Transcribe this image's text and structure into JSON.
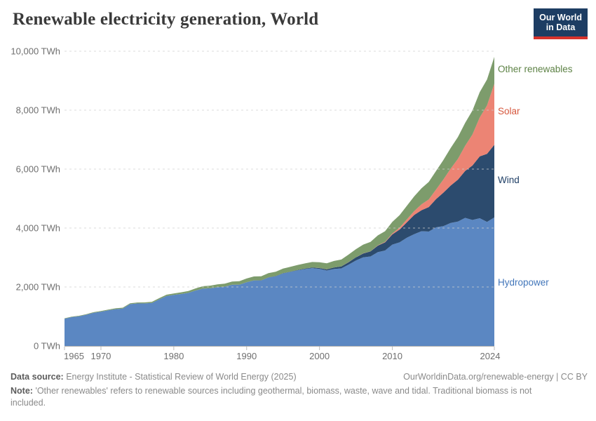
{
  "header": {
    "title": "Renewable electricity generation, World",
    "logo_line1": "Our World",
    "logo_line2": "in Data",
    "logo_bg": "#1d3d63",
    "logo_accent": "#d6332c"
  },
  "footer": {
    "source_label": "Data source:",
    "source_text": "Energy Institute - Statistical Review of World Energy (2025)",
    "credit": "OurWorldinData.org/renewable-energy | CC BY",
    "note_label": "Note:",
    "note_text": "'Other renewables' refers to renewable sources including geothermal, biomass, waste, wave and tidal. Traditional biomass is not included."
  },
  "chart_data": {
    "type": "area",
    "stacked": true,
    "title": "Renewable electricity generation, World",
    "unit": "TWh",
    "xlabel": "",
    "ylabel": "",
    "ylim": [
      0,
      10000
    ],
    "xlim": [
      1965,
      2024
    ],
    "grid": "dashed-horizontal",
    "legend_position": "right-edge-labels",
    "x": [
      1965,
      1966,
      1967,
      1968,
      1969,
      1970,
      1971,
      1972,
      1973,
      1974,
      1975,
      1976,
      1977,
      1978,
      1979,
      1980,
      1981,
      1982,
      1983,
      1984,
      1985,
      1986,
      1987,
      1988,
      1989,
      1990,
      1991,
      1992,
      1993,
      1994,
      1995,
      1996,
      1997,
      1998,
      1999,
      2000,
      2001,
      2002,
      2003,
      2004,
      2005,
      2006,
      2007,
      2008,
      2009,
      2010,
      2011,
      2012,
      2013,
      2014,
      2015,
      2016,
      2017,
      2018,
      2019,
      2020,
      2021,
      2022,
      2023,
      2024
    ],
    "series": [
      {
        "name": "Hydropower",
        "color": "#5b87c2",
        "label_color": "#4276ba",
        "values": [
          923,
          978,
          1006,
          1059,
          1124,
          1160,
          1209,
          1248,
          1269,
          1418,
          1441,
          1442,
          1460,
          1580,
          1692,
          1732,
          1762,
          1800,
          1880,
          1944,
          1954,
          1990,
          2011,
          2075,
          2078,
          2159,
          2220,
          2221,
          2322,
          2364,
          2462,
          2513,
          2566,
          2607,
          2640,
          2613,
          2560,
          2609,
          2632,
          2759,
          2900,
          3005,
          3035,
          3181,
          3238,
          3437,
          3514,
          3672,
          3794,
          3893,
          3882,
          4023,
          4065,
          4171,
          4222,
          4346,
          4274,
          4334,
          4210,
          4360
        ]
      },
      {
        "name": "Wind",
        "color": "#2c4b6e",
        "label_color": "#1f3f66",
        "values": [
          0,
          0,
          0,
          0,
          0,
          0,
          0,
          0,
          0,
          0,
          0,
          0,
          0,
          0,
          0,
          0,
          0,
          0,
          0,
          0,
          1,
          1,
          1,
          2,
          3,
          4,
          5,
          5,
          6,
          7,
          8,
          9,
          12,
          16,
          21,
          31,
          38,
          52,
          63,
          85,
          104,
          133,
          171,
          221,
          276,
          346,
          437,
          526,
          648,
          712,
          831,
          957,
          1136,
          1270,
          1421,
          1591,
          1848,
          2098,
          2310,
          2465
        ]
      },
      {
        "name": "Solar",
        "color": "#ec8474",
        "label_color": "#d6573d",
        "values": [
          0,
          0,
          0,
          0,
          0,
          0,
          0,
          0,
          0,
          0,
          0,
          0,
          0,
          0,
          0,
          0,
          0,
          0,
          0,
          0,
          0,
          0,
          0,
          0,
          0,
          0,
          0,
          0,
          0,
          0,
          0,
          0,
          0,
          0,
          0,
          1,
          1,
          2,
          2,
          3,
          4,
          5,
          7,
          12,
          20,
          32,
          63,
          97,
          132,
          197,
          256,
          328,
          445,
          574,
          704,
          853,
          1055,
          1321,
          1640,
          2075
        ]
      },
      {
        "name": "Other renewables",
        "color": "#7d9c6c",
        "label_color": "#5d8245",
        "values": [
          15,
          16,
          17,
          19,
          21,
          23,
          25,
          27,
          28,
          30,
          32,
          35,
          38,
          42,
          46,
          50,
          57,
          64,
          72,
          81,
          90,
          96,
          102,
          109,
          117,
          125,
          131,
          137,
          143,
          149,
          155,
          162,
          170,
          178,
          186,
          195,
          205,
          220,
          235,
          255,
          275,
          295,
          315,
          335,
          360,
          395,
          425,
          460,
          500,
          545,
          595,
          630,
          660,
          700,
          740,
          780,
          810,
          860,
          880,
          910
        ]
      }
    ],
    "y_ticks": [
      {
        "value": 0,
        "label": "0 TWh"
      },
      {
        "value": 2000,
        "label": "2,000 TWh"
      },
      {
        "value": 4000,
        "label": "4,000 TWh"
      },
      {
        "value": 6000,
        "label": "6,000 TWh"
      },
      {
        "value": 8000,
        "label": "8,000 TWh"
      },
      {
        "value": 10000,
        "label": "10,000 TWh"
      }
    ],
    "x_ticks": [
      {
        "value": 1965,
        "label": "1965"
      },
      {
        "value": 1970,
        "label": "1970"
      },
      {
        "value": 1980,
        "label": "1980"
      },
      {
        "value": 1990,
        "label": "1990"
      },
      {
        "value": 2000,
        "label": "2000"
      },
      {
        "value": 2010,
        "label": "2010"
      },
      {
        "value": 2024,
        "label": "2024"
      }
    ]
  }
}
